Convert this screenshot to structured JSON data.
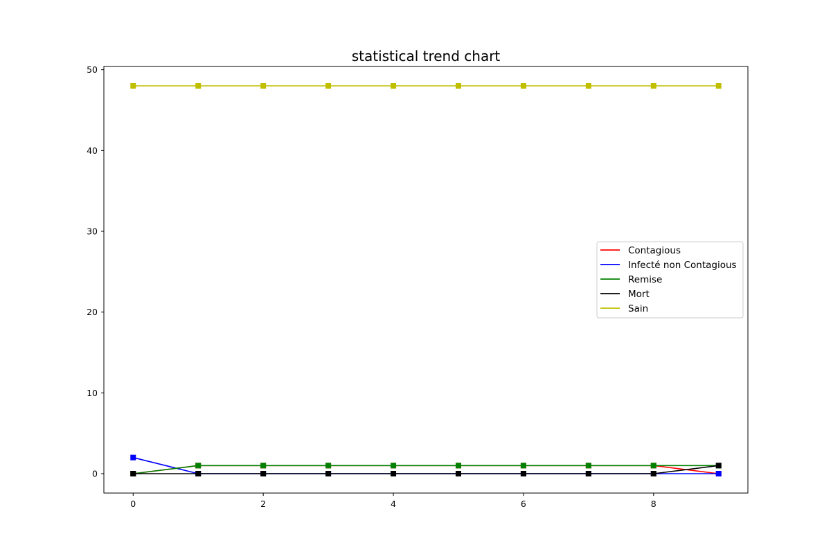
{
  "chart_data": {
    "type": "line",
    "title": "statistical trend chart",
    "xlabel": "",
    "ylabel": "",
    "x": [
      0,
      1,
      2,
      3,
      4,
      5,
      6,
      7,
      8,
      9
    ],
    "xlim": [
      -0.45,
      9.45
    ],
    "ylim": [
      -2.4,
      50.4
    ],
    "xticks": [
      0,
      2,
      4,
      6,
      8
    ],
    "yticks": [
      0,
      10,
      20,
      30,
      40,
      50
    ],
    "grid": false,
    "legend_position": "center-right",
    "marker": "square",
    "series": [
      {
        "name": "Contagious",
        "color": "#ff0000",
        "values": [
          0,
          1,
          1,
          1,
          1,
          1,
          1,
          1,
          1,
          0
        ]
      },
      {
        "name": "Infecté non Contagious",
        "color": "#0000ff",
        "values": [
          2,
          0,
          0,
          0,
          0,
          0,
          0,
          0,
          0,
          0
        ]
      },
      {
        "name": "Remise",
        "color": "#008000",
        "values": [
          0,
          1,
          1,
          1,
          1,
          1,
          1,
          1,
          1,
          1
        ]
      },
      {
        "name": "Mort",
        "color": "#000000",
        "values": [
          0,
          0,
          0,
          0,
          0,
          0,
          0,
          0,
          0,
          1
        ]
      },
      {
        "name": "Sain",
        "color": "#bfbf00",
        "values": [
          48,
          48,
          48,
          48,
          48,
          48,
          48,
          48,
          48,
          48
        ]
      }
    ]
  }
}
